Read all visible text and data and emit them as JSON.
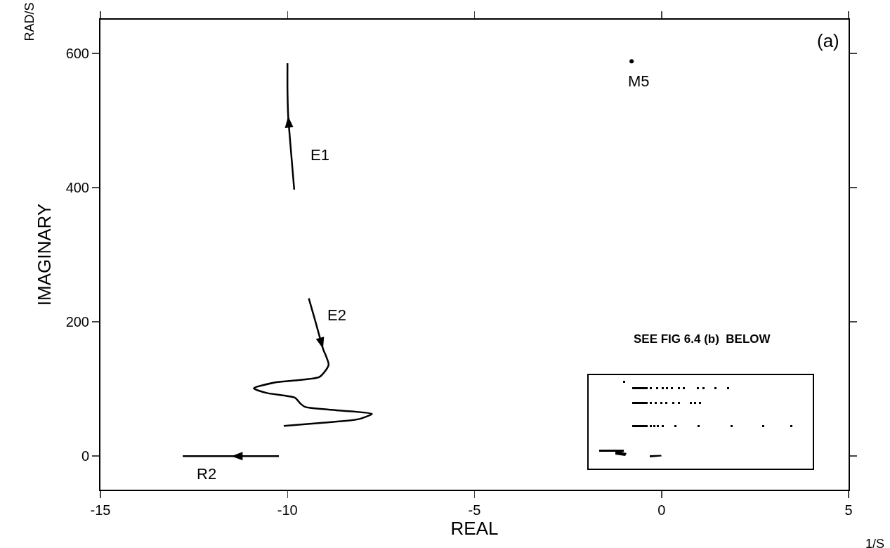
{
  "chart_data": {
    "type": "line",
    "xlabel": "REAL",
    "ylabel": "IMAGINARY",
    "xlim": [
      -15,
      5
    ],
    "xticks": [
      -15,
      -10,
      -5,
      0,
      5
    ],
    "ylim": [
      -50,
      650
    ],
    "yticks": [
      0,
      200,
      400,
      600
    ],
    "grid": false,
    "marker": "none",
    "line_style": "solid",
    "series": [
      {
        "name": "E1",
        "color": "#000000",
        "x": [
          -9.82,
          -9.9,
          -9.98,
          -10.0,
          -10.0
        ],
        "values": [
          397,
          450,
          506,
          545,
          585
        ]
      },
      {
        "name": "E2",
        "color": "#000000",
        "x": [
          -9.43,
          -9.25,
          -9.05,
          -8.9,
          -9.14,
          -10.3,
          -10.9,
          -10.55,
          -9.8,
          -9.65,
          -9.52,
          -8.6,
          -7.74,
          -8.1,
          -9.0,
          -10.1
        ],
        "values": [
          235,
          200,
          160,
          136,
          118,
          110,
          101,
          94,
          87,
          78,
          73,
          68,
          63,
          55,
          50,
          45
        ]
      },
      {
        "name": "R2",
        "color": "#000000",
        "x": [
          -10.23,
          -10.9,
          -11.5,
          -12.8
        ],
        "values": [
          0,
          0,
          0,
          0
        ]
      },
      {
        "name": "M5",
        "type": "scatter",
        "color": "#000000",
        "x": [
          -0.8
        ],
        "values": [
          588
        ]
      }
    ],
    "annotations": [
      "(a)",
      "RAD/S",
      "1/S",
      "SEE FIG 6.4 (b)  BELOW"
    ]
  }
}
